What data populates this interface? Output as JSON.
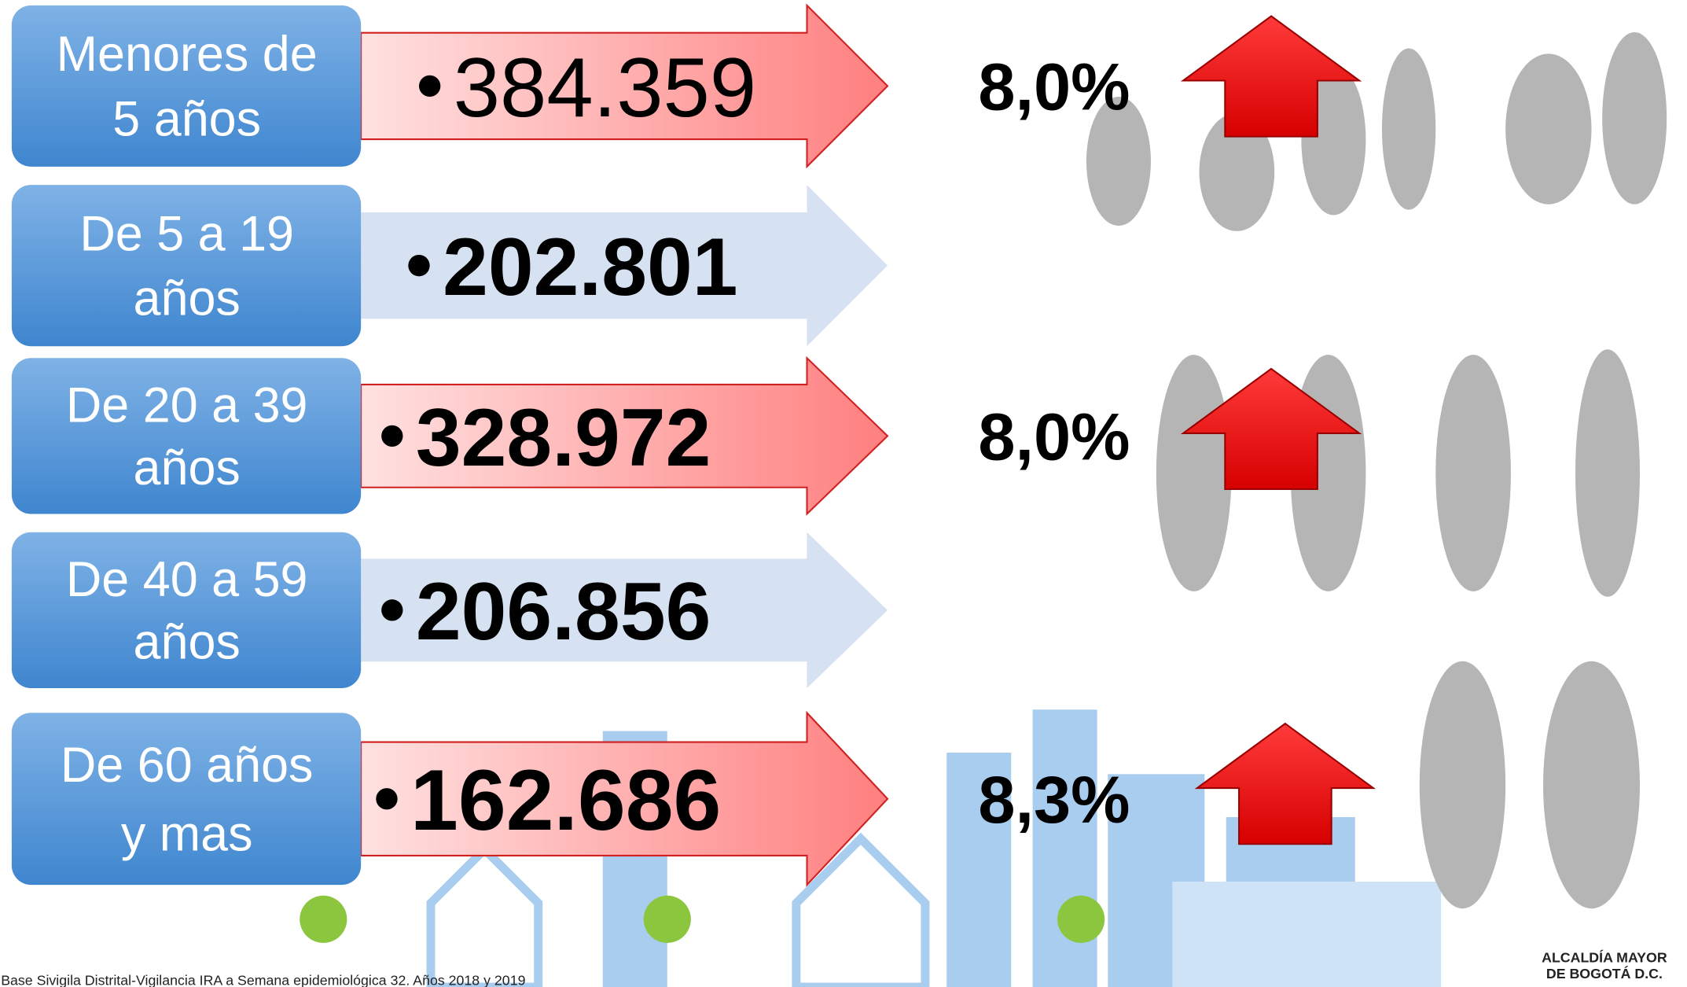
{
  "rows": [
    {
      "label": [
        "Menores de",
        "5 años"
      ],
      "value": "384.359",
      "change": "8,0%"
    },
    {
      "label": [
        "De 5 a 19",
        "años"
      ],
      "value": "202.801"
    },
    {
      "label": [
        "De 20 a 39",
        "años"
      ],
      "value": "328.972",
      "change": "8,0%"
    },
    {
      "label": [
        "De 40 a 59",
        "años"
      ],
      "value": "206.856"
    },
    {
      "label": [
        "De 60 años",
        "y mas"
      ],
      "value": "162.686",
      "change": "8,3%"
    }
  ],
  "footnote": "Base Sivigila Distrital-Vigilancia IRA a Semana epidemiológica 32. Años 2018 y 2019",
  "logo": [
    "ALCALDÍA MAYOR",
    "DE BOGOTÁ D.C."
  ]
}
